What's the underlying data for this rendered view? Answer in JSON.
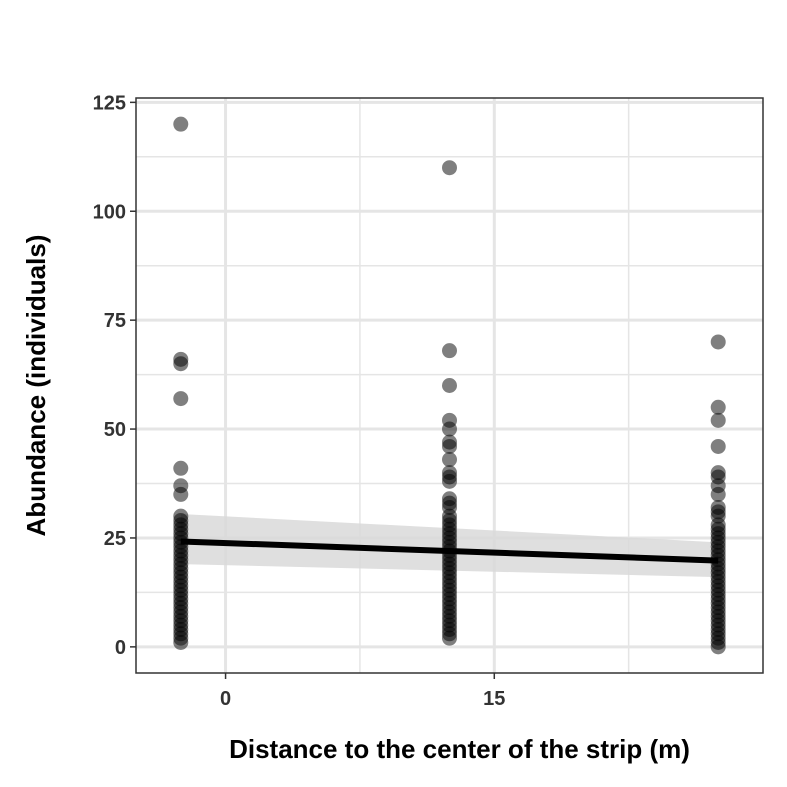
{
  "chart_data": {
    "type": "scatter",
    "title": "",
    "xlabel": "Distance to the center of the strip (m)",
    "ylabel": "Abundance (individuals)",
    "xlim": [
      -5,
      30
    ],
    "ylim": [
      -6,
      126
    ],
    "x_ticks": [
      0,
      15
    ],
    "x_tick_labels": [
      "0",
      "15"
    ],
    "y_ticks": [
      0,
      25,
      50,
      75,
      100,
      125
    ],
    "y_tick_labels": [
      "0",
      "25",
      "50",
      "75",
      "100",
      "125"
    ],
    "grid": true,
    "legend": "none",
    "colors": {
      "points": "#000000",
      "points_opacity": 0.5,
      "fit_line": "#000000",
      "ci_band": "#d9d9d9",
      "grid": "#e5e5e5",
      "panel_border": "#333333"
    },
    "series": [
      {
        "x": -2.5,
        "y": [
          120,
          66,
          65,
          57,
          41,
          37,
          35,
          30,
          29,
          28,
          27,
          26,
          25,
          24,
          23,
          22,
          21,
          20,
          19,
          18,
          17,
          16,
          15,
          14,
          13,
          12,
          11,
          10,
          9,
          8,
          7,
          6,
          5,
          4,
          3,
          2,
          1
        ]
      },
      {
        "x": 12.5,
        "y": [
          110,
          68,
          60,
          52,
          50,
          47,
          46,
          43,
          40,
          39,
          38,
          34,
          33,
          32,
          30,
          29,
          28,
          27,
          26,
          25,
          24,
          23,
          22,
          21,
          20,
          19,
          18,
          17,
          16,
          15,
          14,
          13,
          12,
          11,
          10,
          9,
          8,
          7,
          6,
          5,
          4,
          3,
          2
        ]
      },
      {
        "x": 27.5,
        "y": [
          70,
          55,
          52,
          46,
          40,
          39,
          37,
          35,
          32,
          31,
          30,
          28,
          27,
          26,
          25,
          24,
          23,
          22,
          21,
          20,
          19,
          18,
          17,
          16,
          15,
          14,
          13,
          12,
          11,
          10,
          9,
          8,
          7,
          6,
          5,
          4,
          3,
          2,
          1,
          0
        ]
      }
    ],
    "fit": {
      "x": [
        -2.5,
        27.5
      ],
      "y": [
        24.2,
        19.8
      ],
      "ci_lower": [
        19.0,
        16.0
      ],
      "ci_upper": [
        30.5,
        24.0
      ]
    }
  }
}
